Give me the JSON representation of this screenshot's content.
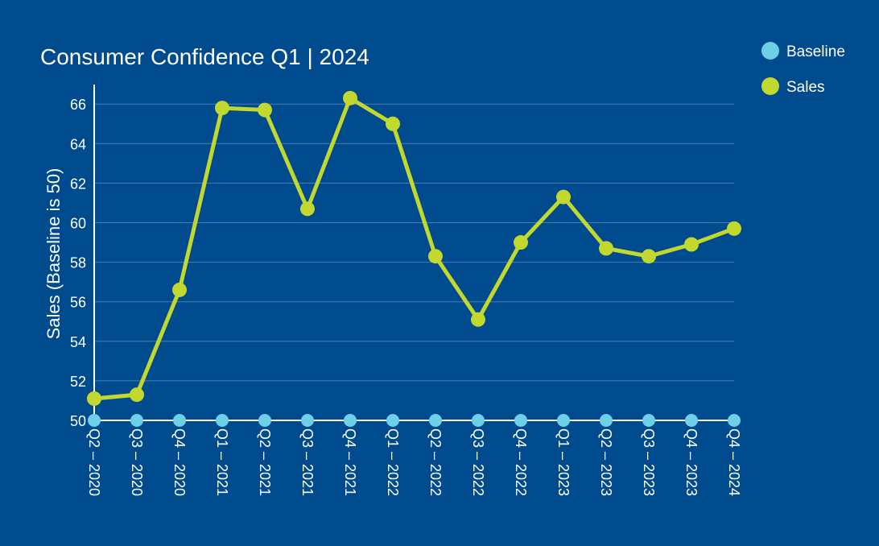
{
  "chart_data": {
    "type": "line",
    "title": "Consumer Confidence Q1 | 2024",
    "xlabel": "",
    "ylabel": "Sales (Baseline is 50)",
    "ylim": [
      50,
      67
    ],
    "yticks": [
      50,
      52,
      54,
      56,
      58,
      60,
      62,
      64,
      66
    ],
    "grid": true,
    "legend_position": "top-right",
    "categories": [
      "Q2 – 2020",
      "Q3 – 2020",
      "Q4 – 2020",
      "Q1 – 2021",
      "Q2 – 2021",
      "Q3 – 2021",
      "Q4 – 2021",
      "Q1 – 2022",
      "Q2 – 2022",
      "Q3 – 2022",
      "Q4 – 2022",
      "Q1 – 2023",
      "Q2 – 2023",
      "Q3 – 2023",
      "Q4 – 2023",
      "Q4 – 2024"
    ],
    "series": [
      {
        "name": "Baseline",
        "color": "#6ecfe8",
        "values": [
          50,
          50,
          50,
          50,
          50,
          50,
          50,
          50,
          50,
          50,
          50,
          50,
          50,
          50,
          50,
          50
        ]
      },
      {
        "name": "Sales",
        "color": "#c2d82f",
        "values": [
          51.1,
          51.3,
          56.6,
          65.8,
          65.7,
          60.7,
          66.3,
          65.0,
          58.3,
          55.1,
          59.0,
          61.3,
          58.7,
          58.3,
          58.9,
          59.7
        ]
      }
    ]
  },
  "colors": {
    "background": "#004b8d",
    "grid": "#4a7fb3",
    "axis": "#ffffff"
  }
}
